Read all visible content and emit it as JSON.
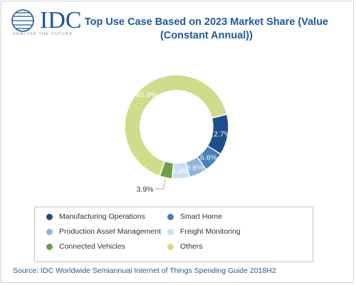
{
  "header": {
    "logo_text": "IDC",
    "logo_tagline": "ANALYZE THE FUTURE",
    "title_line1": "Top Use Case Based on 2023 Market Share (Value",
    "title_line2": "(Constant Annual))"
  },
  "chart_data": {
    "type": "pie",
    "title": "Top Use Case Based on 2023 Market Share (Value (Constant Annual))",
    "donut": true,
    "unit": "%",
    "legend_position": "bottom",
    "series": [
      {
        "name": "Manufacturing Operations",
        "value": 12.7,
        "label": "12.7%",
        "color": "#1f4e8c"
      },
      {
        "name": "Smart Home",
        "value": 6.6,
        "label": "6.6%",
        "color": "#4a7fb8"
      },
      {
        "name": "Production Asset Management",
        "value": 5.6,
        "label": "5.6%",
        "color": "#8fb3dc"
      },
      {
        "name": "Freight Monitoring",
        "value": 5.4,
        "label": "5.4%",
        "color": "#c7e1f3"
      },
      {
        "name": "Connected Vehicles",
        "value": 3.9,
        "label": "3.9%",
        "color": "#6f9e45"
      },
      {
        "name": "Others",
        "value": 65.9,
        "label": "65.9%",
        "color": "#cfdc8c"
      }
    ]
  },
  "footer": {
    "source": "Source: IDC Worldwide Semiannual Internet of Things Spending Guide 2018H2"
  }
}
